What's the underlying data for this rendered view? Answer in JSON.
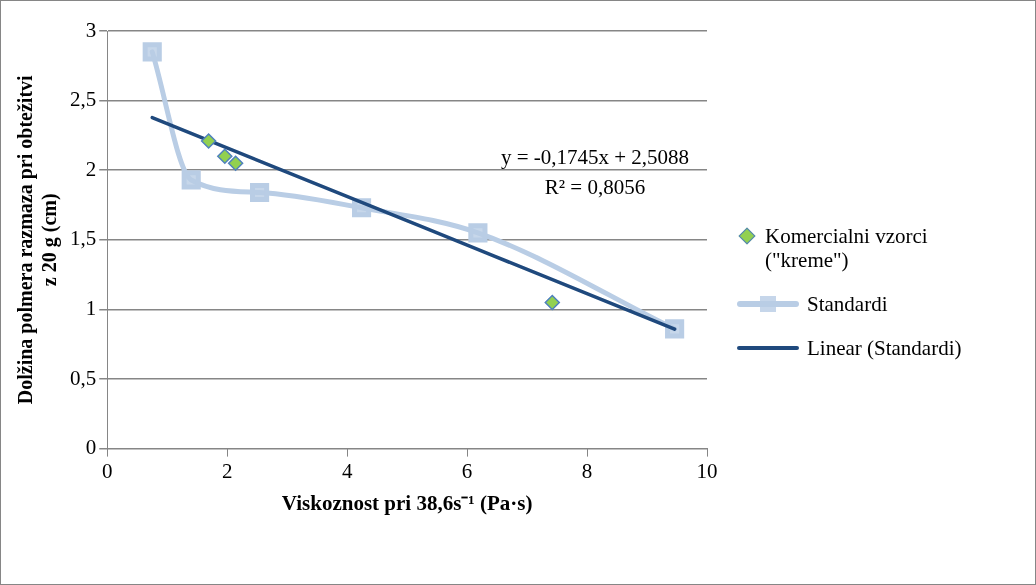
{
  "chart_data": {
    "type": "scatter",
    "xlabel": "Viskoznost pri 38,6s⁻¹ (Pa·s)",
    "ylabel": "Dolžina polmera razmaza pri obtežitvi z 20 g (cm)",
    "xlim": [
      0,
      10
    ],
    "xticks": [
      0,
      2,
      4,
      6,
      8,
      10
    ],
    "ylim": [
      0,
      3
    ],
    "yticks": [
      0,
      {
        "value": 0.5,
        "label": "0,5"
      },
      1,
      {
        "value": 1.5,
        "label": "1,5"
      },
      2,
      {
        "value": 2.5,
        "label": "2,5"
      },
      3
    ],
    "grid": "y",
    "legend": "right",
    "annotations": [
      "y = -0,1745x + 2,5088",
      "R² = 0,8056"
    ],
    "series": [
      {
        "name": "Komercialni vzorci (\"kreme\")",
        "type": "scatter",
        "marker": "diamond",
        "color": "#92d050",
        "x": [
          1.69,
          1.96,
          2.14,
          7.42
        ],
        "values": [
          2.21,
          2.1,
          2.05,
          1.05
        ]
      },
      {
        "name": "Standardi",
        "type": "line",
        "marker": "square",
        "color": "#b9cde5",
        "x": [
          0.75,
          1.4,
          2.54,
          4.24,
          6.18,
          9.46
        ],
        "values": [
          2.85,
          1.93,
          1.84,
          1.73,
          1.55,
          0.86
        ]
      },
      {
        "name": "Linear (Standardi)",
        "type": "line",
        "marker": "none",
        "color": "#1f497d",
        "x": [
          0.75,
          9.46
        ],
        "values": [
          2.378,
          0.858
        ]
      }
    ]
  }
}
